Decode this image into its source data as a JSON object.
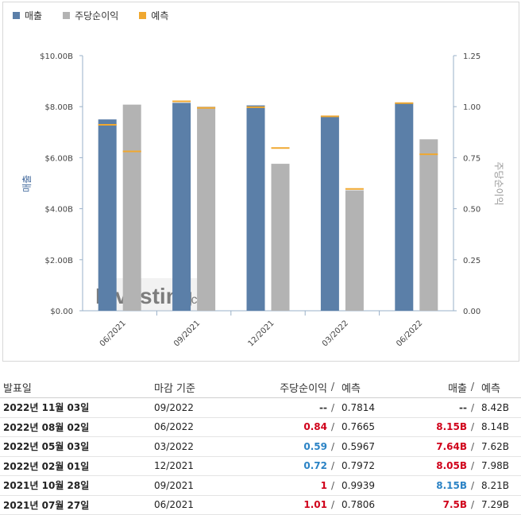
{
  "legend": {
    "revenue": "매출",
    "eps": "주당순이익",
    "forecast": "예측"
  },
  "colors": {
    "revenue": "#5b7fa8",
    "eps": "#b3b3b3",
    "forecast": "#f0a830",
    "beat": "#2b83c5",
    "miss": "#d0021b"
  },
  "watermark": {
    "brand": "Investing",
    "suffix": ".com"
  },
  "chart_data": {
    "type": "bar",
    "categories": [
      "06/2021",
      "09/2021",
      "12/2021",
      "03/2022",
      "06/2022"
    ],
    "series": [
      {
        "name": "매출",
        "axis": "left",
        "values": [
          7.5,
          8.15,
          8.05,
          7.64,
          8.15
        ],
        "forecast": [
          7.29,
          8.21,
          7.98,
          7.62,
          8.14
        ]
      },
      {
        "name": "주당순이익",
        "axis": "right",
        "values": [
          1.01,
          1.0,
          0.72,
          0.59,
          0.84
        ],
        "forecast": [
          0.7806,
          0.9939,
          0.7972,
          0.5967,
          0.7665
        ]
      }
    ],
    "ylabel": "매출",
    "y2label": "주당순이익",
    "ylim": [
      0,
      10
    ],
    "y2lim": [
      0,
      1.25
    ],
    "yticks": [
      "$0.00",
      "$2.00B",
      "$4.00B",
      "$6.00B",
      "$8.00B",
      "$10.00B"
    ],
    "y2ticks": [
      "0.00",
      "0.25",
      "0.50",
      "0.75",
      "1.00",
      "1.25"
    ],
    "grid": false,
    "legend_position": "top-left"
  },
  "table": {
    "headers": {
      "date": "발표일",
      "period": "마감 기준",
      "eps": "주당순이익",
      "slash": "/",
      "forecast": "예측",
      "revenue": "매출"
    },
    "rows": [
      {
        "date": "2022년 11월 03일",
        "period": "09/2022",
        "eps": "--",
        "eps_forecast": "0.7814",
        "revenue": "--",
        "revenue_forecast": "8.42B",
        "eps_state": "neutral",
        "rev_state": "neutral"
      },
      {
        "date": "2022년 08월 02일",
        "period": "06/2022",
        "eps": "0.84",
        "eps_forecast": "0.7665",
        "revenue": "8.15B",
        "revenue_forecast": "8.14B",
        "eps_state": "red",
        "rev_state": "red"
      },
      {
        "date": "2022년 05월 03일",
        "period": "03/2022",
        "eps": "0.59",
        "eps_forecast": "0.5967",
        "revenue": "7.64B",
        "revenue_forecast": "7.62B",
        "eps_state": "blue",
        "rev_state": "red"
      },
      {
        "date": "2022년 02월 01일",
        "period": "12/2021",
        "eps": "0.72",
        "eps_forecast": "0.7972",
        "revenue": "8.05B",
        "revenue_forecast": "7.98B",
        "eps_state": "blue",
        "rev_state": "red"
      },
      {
        "date": "2021년 10월 28일",
        "period": "09/2021",
        "eps": "1",
        "eps_forecast": "0.9939",
        "revenue": "8.15B",
        "revenue_forecast": "8.21B",
        "eps_state": "red",
        "rev_state": "blue"
      },
      {
        "date": "2021년 07월 27일",
        "period": "06/2021",
        "eps": "1.01",
        "eps_forecast": "0.7806",
        "revenue": "7.5B",
        "revenue_forecast": "7.29B",
        "eps_state": "red",
        "rev_state": "red"
      }
    ]
  }
}
